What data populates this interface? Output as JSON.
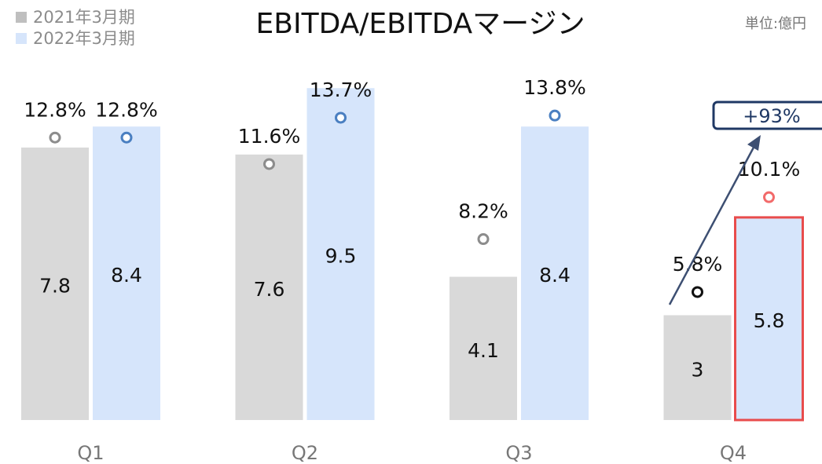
{
  "chart_data": {
    "type": "bar",
    "title": "EBITDA/EBITDAマージン",
    "unit_note": "単位:億円",
    "annotation": "+93%",
    "categories": [
      "Q1",
      "Q2",
      "Q3",
      "Q4"
    ],
    "ylim": [
      0,
      12
    ],
    "y2lim": [
      0,
      19
    ],
    "series": [
      {
        "name": "2021年3月期",
        "color": "#d9d9d9",
        "values": [
          7.8,
          7.6,
          4.1,
          3.0
        ]
      },
      {
        "name": "2022年3月期",
        "color": "#d6e5fb",
        "values": [
          8.4,
          9.5,
          8.4,
          5.8
        ]
      }
    ],
    "margin_series": [
      {
        "color": "#8c8c8c",
        "values": [
          12.8,
          11.6,
          8.2,
          5.8
        ],
        "value_labels": [
          "12.8%",
          "11.6%",
          "8.2%",
          "5.8%"
        ]
      },
      {
        "color": "#4a7fc1",
        "values": [
          12.8,
          13.7,
          13.8,
          10.1
        ],
        "value_labels": [
          "12.8%",
          "13.7%",
          "13.8%",
          "10.1%"
        ]
      }
    ]
  }
}
